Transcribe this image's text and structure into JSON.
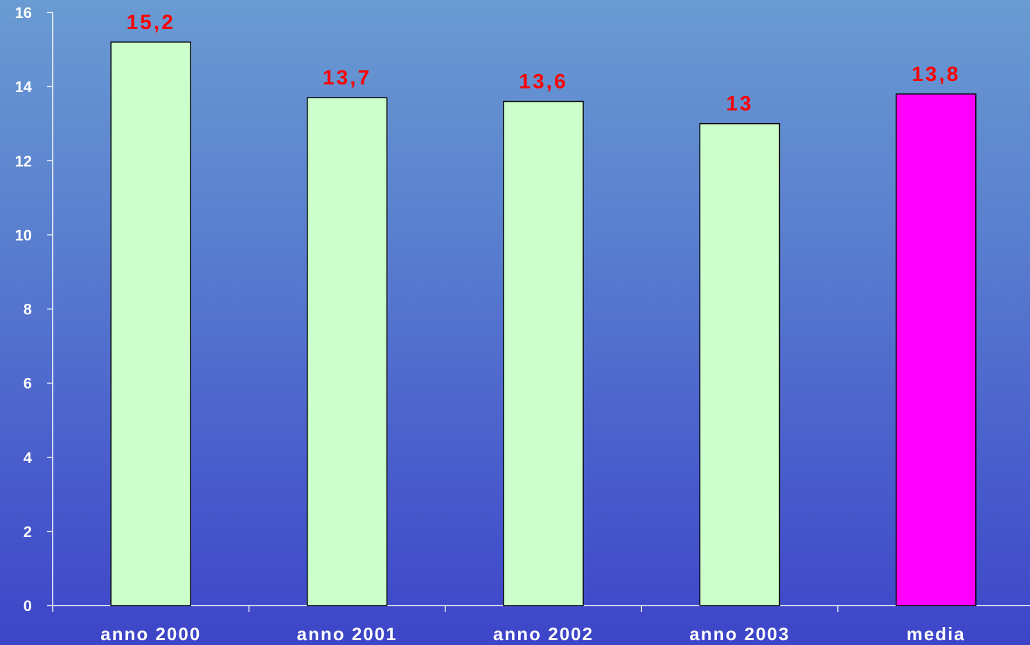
{
  "chart_data": {
    "type": "bar",
    "categories": [
      "anno 2000",
      "anno 2001",
      "anno 2002",
      "anno 2003",
      "media"
    ],
    "values": [
      15.2,
      13.7,
      13.6,
      13,
      13.8
    ],
    "data_labels": [
      "15,2",
      "13,7",
      "13,6",
      "13",
      "13,8"
    ],
    "bar_colors": [
      "#ccffcc",
      "#ccffcc",
      "#ccffcc",
      "#ccffcc",
      "#ff00ff"
    ],
    "data_label_color": "#ff0000",
    "axis_color": "#ffffff",
    "bar_border_color": "#000000",
    "ylim": [
      0,
      16
    ],
    "yticks": [
      0,
      2,
      4,
      6,
      8,
      10,
      12,
      14,
      16
    ],
    "grid": false,
    "title": "",
    "xlabel": "",
    "ylabel": ""
  }
}
